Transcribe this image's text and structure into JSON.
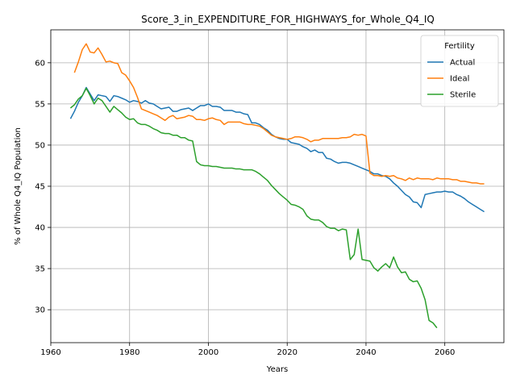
{
  "chart_data": {
    "type": "line",
    "title": "Score_3_in_EXPENDITURE_FOR_HIGHWAYS_for_Whole_Q4_IQ",
    "xlabel": "Years",
    "ylabel": "% of Whole Q4_IQ Population",
    "xlim": [
      1960,
      2075
    ],
    "ylim": [
      26,
      64
    ],
    "xticks": [
      1960,
      1980,
      2000,
      2020,
      2040,
      2060
    ],
    "yticks": [
      30,
      35,
      40,
      45,
      50,
      55,
      60
    ],
    "grid": true,
    "legend": {
      "title": "Fertility",
      "position": "top-right"
    },
    "series": [
      {
        "name": "Actual",
        "color": "#1f77b4",
        "points": [
          [
            1965,
            53.2
          ],
          [
            1966,
            54.1
          ],
          [
            1967,
            55.2
          ],
          [
            1968,
            56.0
          ],
          [
            1969,
            57.0
          ],
          [
            1970,
            56.2
          ],
          [
            1971,
            55.4
          ],
          [
            1972,
            56.1
          ],
          [
            1973,
            56.0
          ],
          [
            1974,
            55.9
          ],
          [
            1975,
            55.3
          ],
          [
            1976,
            56.0
          ],
          [
            1977,
            55.9
          ],
          [
            1978,
            55.7
          ],
          [
            1979,
            55.5
          ],
          [
            1980,
            55.2
          ],
          [
            1981,
            55.4
          ],
          [
            1982,
            55.3
          ],
          [
            1983,
            55.1
          ],
          [
            1984,
            55.4
          ],
          [
            1985,
            55.1
          ],
          [
            1986,
            55.0
          ],
          [
            1987,
            54.7
          ],
          [
            1988,
            54.4
          ],
          [
            1989,
            54.5
          ],
          [
            1990,
            54.6
          ],
          [
            1991,
            54.1
          ],
          [
            1992,
            54.1
          ],
          [
            1993,
            54.3
          ],
          [
            1994,
            54.4
          ],
          [
            1995,
            54.5
          ],
          [
            1996,
            54.2
          ],
          [
            1997,
            54.5
          ],
          [
            1998,
            54.8
          ],
          [
            1999,
            54.8
          ],
          [
            2000,
            55.0
          ],
          [
            2001,
            54.7
          ],
          [
            2002,
            54.7
          ],
          [
            2003,
            54.6
          ],
          [
            2004,
            54.2
          ],
          [
            2005,
            54.2
          ],
          [
            2006,
            54.2
          ],
          [
            2007,
            54.0
          ],
          [
            2008,
            54.0
          ],
          [
            2009,
            53.8
          ],
          [
            2010,
            53.7
          ],
          [
            2011,
            52.7
          ],
          [
            2012,
            52.7
          ],
          [
            2013,
            52.5
          ],
          [
            2014,
            52.1
          ],
          [
            2015,
            51.8
          ],
          [
            2016,
            51.3
          ],
          [
            2017,
            51.0
          ],
          [
            2018,
            50.8
          ],
          [
            2019,
            50.7
          ],
          [
            2020,
            50.7
          ],
          [
            2021,
            50.3
          ],
          [
            2022,
            50.2
          ],
          [
            2023,
            50.1
          ],
          [
            2024,
            49.8
          ],
          [
            2025,
            49.6
          ],
          [
            2026,
            49.2
          ],
          [
            2027,
            49.4
          ],
          [
            2028,
            49.1
          ],
          [
            2029,
            49.1
          ],
          [
            2030,
            48.4
          ],
          [
            2031,
            48.3
          ],
          [
            2032,
            48.0
          ],
          [
            2033,
            47.8
          ],
          [
            2034,
            47.9
          ],
          [
            2035,
            47.9
          ],
          [
            2036,
            47.8
          ],
          [
            2037,
            47.6
          ],
          [
            2038,
            47.4
          ],
          [
            2039,
            47.2
          ],
          [
            2040,
            47.0
          ],
          [
            2041,
            46.8
          ],
          [
            2042,
            46.5
          ],
          [
            2043,
            46.5
          ],
          [
            2044,
            46.3
          ],
          [
            2045,
            46.2
          ],
          [
            2046,
            45.9
          ],
          [
            2047,
            45.4
          ],
          [
            2048,
            45.0
          ],
          [
            2049,
            44.5
          ],
          [
            2050,
            44.0
          ],
          [
            2051,
            43.7
          ],
          [
            2052,
            43.1
          ],
          [
            2053,
            43.0
          ],
          [
            2054,
            42.4
          ],
          [
            2055,
            44.0
          ],
          [
            2056,
            44.1
          ],
          [
            2057,
            44.2
          ],
          [
            2058,
            44.3
          ],
          [
            2059,
            44.3
          ],
          [
            2060,
            44.4
          ],
          [
            2061,
            44.3
          ],
          [
            2062,
            44.3
          ],
          [
            2063,
            44.0
          ],
          [
            2064,
            43.8
          ],
          [
            2065,
            43.5
          ],
          [
            2066,
            43.1
          ],
          [
            2067,
            42.8
          ],
          [
            2068,
            42.5
          ],
          [
            2069,
            42.2
          ],
          [
            2070,
            41.9
          ]
        ]
      },
      {
        "name": "Ideal",
        "color": "#ff7f0e",
        "points": [
          [
            1966,
            58.8
          ],
          [
            1967,
            60.1
          ],
          [
            1968,
            61.6
          ],
          [
            1969,
            62.3
          ],
          [
            1970,
            61.3
          ],
          [
            1971,
            61.2
          ],
          [
            1972,
            61.8
          ],
          [
            1973,
            61.0
          ],
          [
            1974,
            60.1
          ],
          [
            1975,
            60.2
          ],
          [
            1976,
            60.0
          ],
          [
            1977,
            59.9
          ],
          [
            1978,
            58.8
          ],
          [
            1979,
            58.5
          ],
          [
            1980,
            57.8
          ],
          [
            1981,
            57.0
          ],
          [
            1982,
            55.8
          ],
          [
            1983,
            54.4
          ],
          [
            1984,
            54.2
          ],
          [
            1985,
            54.0
          ],
          [
            1986,
            53.8
          ],
          [
            1987,
            53.6
          ],
          [
            1988,
            53.3
          ],
          [
            1989,
            53.0
          ],
          [
            1990,
            53.4
          ],
          [
            1991,
            53.6
          ],
          [
            1992,
            53.2
          ],
          [
            1993,
            53.3
          ],
          [
            1994,
            53.4
          ],
          [
            1995,
            53.6
          ],
          [
            1996,
            53.5
          ],
          [
            1997,
            53.1
          ],
          [
            1998,
            53.1
          ],
          [
            1999,
            53.0
          ],
          [
            2000,
            53.2
          ],
          [
            2001,
            53.3
          ],
          [
            2002,
            53.1
          ],
          [
            2003,
            53.0
          ],
          [
            2004,
            52.5
          ],
          [
            2005,
            52.8
          ],
          [
            2006,
            52.8
          ],
          [
            2007,
            52.8
          ],
          [
            2008,
            52.8
          ],
          [
            2009,
            52.6
          ],
          [
            2010,
            52.5
          ],
          [
            2011,
            52.5
          ],
          [
            2012,
            52.4
          ],
          [
            2013,
            52.3
          ],
          [
            2014,
            52.0
          ],
          [
            2015,
            51.6
          ],
          [
            2016,
            51.2
          ],
          [
            2017,
            51.0
          ],
          [
            2018,
            50.9
          ],
          [
            2019,
            50.8
          ],
          [
            2020,
            50.7
          ],
          [
            2021,
            50.8
          ],
          [
            2022,
            51.0
          ],
          [
            2023,
            51.0
          ],
          [
            2024,
            50.9
          ],
          [
            2025,
            50.7
          ],
          [
            2026,
            50.4
          ],
          [
            2027,
            50.6
          ],
          [
            2028,
            50.6
          ],
          [
            2029,
            50.8
          ],
          [
            2030,
            50.8
          ],
          [
            2031,
            50.8
          ],
          [
            2032,
            50.8
          ],
          [
            2033,
            50.8
          ],
          [
            2034,
            50.9
          ],
          [
            2035,
            50.9
          ],
          [
            2036,
            51.0
          ],
          [
            2037,
            51.3
          ],
          [
            2038,
            51.2
          ],
          [
            2039,
            51.3
          ],
          [
            2040,
            51.1
          ],
          [
            2041,
            46.6
          ],
          [
            2042,
            46.3
          ],
          [
            2043,
            46.3
          ],
          [
            2044,
            46.2
          ],
          [
            2045,
            46.3
          ],
          [
            2046,
            46.2
          ],
          [
            2047,
            46.3
          ],
          [
            2048,
            46.0
          ],
          [
            2049,
            45.9
          ],
          [
            2050,
            45.7
          ],
          [
            2051,
            46.0
          ],
          [
            2052,
            45.8
          ],
          [
            2053,
            46.0
          ],
          [
            2054,
            45.9
          ],
          [
            2055,
            45.9
          ],
          [
            2056,
            45.9
          ],
          [
            2057,
            45.8
          ],
          [
            2058,
            46.0
          ],
          [
            2059,
            45.9
          ],
          [
            2060,
            45.9
          ],
          [
            2061,
            45.9
          ],
          [
            2062,
            45.8
          ],
          [
            2063,
            45.8
          ],
          [
            2064,
            45.6
          ],
          [
            2065,
            45.6
          ],
          [
            2066,
            45.5
          ],
          [
            2067,
            45.4
          ],
          [
            2068,
            45.4
          ],
          [
            2069,
            45.3
          ],
          [
            2070,
            45.3
          ]
        ]
      },
      {
        "name": "Sterile",
        "color": "#2ca02c",
        "points": [
          [
            1965,
            54.5
          ],
          [
            1966,
            54.9
          ],
          [
            1967,
            55.6
          ],
          [
            1968,
            56.0
          ],
          [
            1969,
            56.9
          ],
          [
            1970,
            56.0
          ],
          [
            1971,
            55.0
          ],
          [
            1972,
            55.7
          ],
          [
            1973,
            55.4
          ],
          [
            1974,
            54.7
          ],
          [
            1975,
            54.0
          ],
          [
            1976,
            54.7
          ],
          [
            1977,
            54.3
          ],
          [
            1978,
            53.9
          ],
          [
            1979,
            53.4
          ],
          [
            1980,
            53.1
          ],
          [
            1981,
            53.2
          ],
          [
            1982,
            52.7
          ],
          [
            1983,
            52.5
          ],
          [
            1984,
            52.5
          ],
          [
            1985,
            52.3
          ],
          [
            1986,
            52.0
          ],
          [
            1987,
            51.8
          ],
          [
            1988,
            51.5
          ],
          [
            1989,
            51.4
          ],
          [
            1990,
            51.4
          ],
          [
            1991,
            51.2
          ],
          [
            1992,
            51.2
          ],
          [
            1993,
            50.9
          ],
          [
            1994,
            50.9
          ],
          [
            1995,
            50.6
          ],
          [
            1996,
            50.5
          ],
          [
            1997,
            48.0
          ],
          [
            1998,
            47.6
          ],
          [
            1999,
            47.5
          ],
          [
            2000,
            47.5
          ],
          [
            2001,
            47.4
          ],
          [
            2002,
            47.4
          ],
          [
            2003,
            47.3
          ],
          [
            2004,
            47.2
          ],
          [
            2005,
            47.2
          ],
          [
            2006,
            47.2
          ],
          [
            2007,
            47.1
          ],
          [
            2008,
            47.1
          ],
          [
            2009,
            47.0
          ],
          [
            2010,
            47.0
          ],
          [
            2011,
            47.0
          ],
          [
            2012,
            46.8
          ],
          [
            2013,
            46.5
          ],
          [
            2014,
            46.1
          ],
          [
            2015,
            45.7
          ],
          [
            2016,
            45.1
          ],
          [
            2017,
            44.6
          ],
          [
            2018,
            44.1
          ],
          [
            2019,
            43.7
          ],
          [
            2020,
            43.3
          ],
          [
            2021,
            42.8
          ],
          [
            2022,
            42.7
          ],
          [
            2023,
            42.5
          ],
          [
            2024,
            42.2
          ],
          [
            2025,
            41.4
          ],
          [
            2026,
            41.0
          ],
          [
            2027,
            40.9
          ],
          [
            2028,
            40.9
          ],
          [
            2029,
            40.6
          ],
          [
            2030,
            40.1
          ],
          [
            2031,
            39.9
          ],
          [
            2032,
            39.9
          ],
          [
            2033,
            39.6
          ],
          [
            2034,
            39.8
          ],
          [
            2035,
            39.7
          ],
          [
            2036,
            36.1
          ],
          [
            2037,
            36.7
          ],
          [
            2038,
            39.8
          ],
          [
            2039,
            36.1
          ],
          [
            2040,
            36.0
          ],
          [
            2041,
            35.9
          ],
          [
            2042,
            35.1
          ],
          [
            2043,
            34.7
          ],
          [
            2044,
            35.2
          ],
          [
            2045,
            35.6
          ],
          [
            2046,
            35.1
          ],
          [
            2047,
            36.4
          ],
          [
            2048,
            35.2
          ],
          [
            2049,
            34.5
          ],
          [
            2050,
            34.6
          ],
          [
            2051,
            33.7
          ],
          [
            2052,
            33.4
          ],
          [
            2053,
            33.5
          ],
          [
            2054,
            32.6
          ],
          [
            2055,
            31.2
          ],
          [
            2056,
            28.7
          ],
          [
            2057,
            28.4
          ],
          [
            2058,
            27.8
          ]
        ]
      }
    ]
  }
}
